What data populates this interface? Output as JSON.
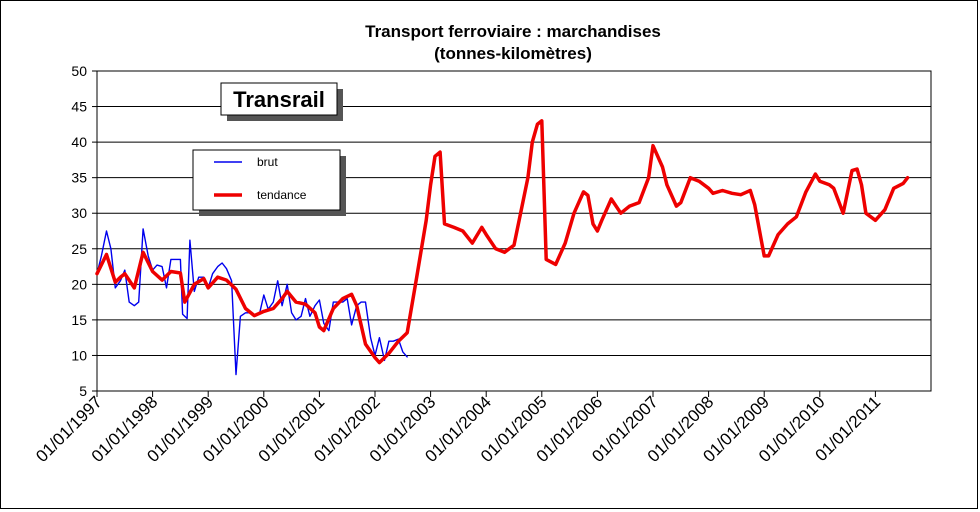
{
  "chart_data": {
    "type": "line",
    "title": "Transport ferroviaire : marchandises",
    "subtitle": "(tonnes-kilomètres)",
    "badge": "Transrail",
    "xlabel": "",
    "ylabel": "",
    "ylim": [
      5,
      50
    ],
    "yticks": [
      5,
      10,
      15,
      20,
      25,
      30,
      35,
      40,
      45,
      50
    ],
    "x_tick_labels": [
      "01/01/1997",
      "01/01/1998",
      "01/01/1999",
      "01/01/2000",
      "01/01/2001",
      "01/01/2002",
      "01/01/2003",
      "01/01/2004",
      "01/01/2005",
      "01/01/2006",
      "01/01/2007",
      "01/01/2008",
      "01/01/2009",
      "01/01/2010",
      "01/01/2011"
    ],
    "x_tick_years": [
      1997,
      1998,
      1999,
      2000,
      2001,
      2002,
      2003,
      2004,
      2005,
      2006,
      2007,
      2008,
      2009,
      2010,
      2011
    ],
    "xlim": [
      1997,
      2012
    ],
    "legend_position": "upper-left",
    "colors": {
      "brut": "#0000ee",
      "tendance": "#ee0000"
    },
    "series": [
      {
        "name": "brut",
        "points": [
          [
            1997.0,
            21.5
          ],
          [
            1997.08,
            24.0
          ],
          [
            1997.17,
            27.5
          ],
          [
            1997.25,
            25.0
          ],
          [
            1997.33,
            19.5
          ],
          [
            1997.42,
            20.5
          ],
          [
            1997.5,
            22.0
          ],
          [
            1997.58,
            17.5
          ],
          [
            1997.67,
            17.0
          ],
          [
            1997.75,
            17.5
          ],
          [
            1997.83,
            27.8
          ],
          [
            1997.92,
            24.0
          ],
          [
            1998.0,
            22.0
          ],
          [
            1998.08,
            22.7
          ],
          [
            1998.17,
            22.5
          ],
          [
            1998.25,
            19.5
          ],
          [
            1998.33,
            23.5
          ],
          [
            1998.42,
            23.5
          ],
          [
            1998.5,
            23.5
          ],
          [
            1998.54,
            15.8
          ],
          [
            1998.62,
            15.2
          ],
          [
            1998.67,
            26.2
          ],
          [
            1998.75,
            19.0
          ],
          [
            1998.83,
            21.0
          ],
          [
            1998.92,
            21.0
          ],
          [
            1999.0,
            19.5
          ],
          [
            1999.08,
            21.5
          ],
          [
            1999.17,
            22.5
          ],
          [
            1999.25,
            23.0
          ],
          [
            1999.33,
            22.2
          ],
          [
            1999.42,
            20.5
          ],
          [
            1999.5,
            7.3
          ],
          [
            1999.58,
            15.5
          ],
          [
            1999.67,
            16.0
          ],
          [
            1999.75,
            16.0
          ],
          [
            1999.83,
            15.5
          ],
          [
            1999.92,
            15.8
          ],
          [
            2000.0,
            18.5
          ],
          [
            2000.08,
            16.5
          ],
          [
            2000.17,
            17.5
          ],
          [
            2000.25,
            20.5
          ],
          [
            2000.33,
            17.0
          ],
          [
            2000.42,
            20.0
          ],
          [
            2000.5,
            16.0
          ],
          [
            2000.58,
            15.0
          ],
          [
            2000.67,
            15.5
          ],
          [
            2000.75,
            18.0
          ],
          [
            2000.83,
            15.5
          ],
          [
            2000.92,
            17.0
          ],
          [
            2001.0,
            17.8
          ],
          [
            2001.08,
            14.5
          ],
          [
            2001.17,
            13.5
          ],
          [
            2001.25,
            17.5
          ],
          [
            2001.33,
            17.5
          ],
          [
            2001.42,
            17.5
          ],
          [
            2001.5,
            18.0
          ],
          [
            2001.58,
            14.3
          ],
          [
            2001.67,
            17.0
          ],
          [
            2001.75,
            17.5
          ],
          [
            2001.83,
            17.5
          ],
          [
            2001.92,
            12.5
          ],
          [
            2002.0,
            10.0
          ],
          [
            2002.08,
            12.5
          ],
          [
            2002.17,
            9.3
          ],
          [
            2002.25,
            12.0
          ],
          [
            2002.33,
            12.0
          ],
          [
            2002.42,
            12.3
          ],
          [
            2002.5,
            10.5
          ],
          [
            2002.58,
            9.8
          ]
        ]
      },
      {
        "name": "tendance",
        "points": [
          [
            1997.0,
            21.5
          ],
          [
            1997.17,
            24.2
          ],
          [
            1997.33,
            20.3
          ],
          [
            1997.42,
            21.0
          ],
          [
            1997.5,
            21.5
          ],
          [
            1997.67,
            19.5
          ],
          [
            1997.83,
            24.5
          ],
          [
            1998.0,
            21.8
          ],
          [
            1998.17,
            20.6
          ],
          [
            1998.33,
            21.8
          ],
          [
            1998.5,
            21.6
          ],
          [
            1998.58,
            17.5
          ],
          [
            1998.75,
            20.0
          ],
          [
            1998.92,
            20.8
          ],
          [
            1999.0,
            19.5
          ],
          [
            1999.17,
            21.0
          ],
          [
            1999.33,
            20.6
          ],
          [
            1999.5,
            19.3
          ],
          [
            1999.67,
            16.6
          ],
          [
            1999.83,
            15.6
          ],
          [
            2000.0,
            16.2
          ],
          [
            2000.17,
            16.6
          ],
          [
            2000.33,
            18.0
          ],
          [
            2000.42,
            19.0
          ],
          [
            2000.58,
            17.5
          ],
          [
            2000.75,
            17.2
          ],
          [
            2000.92,
            16.0
          ],
          [
            2001.0,
            14.0
          ],
          [
            2001.08,
            13.5
          ],
          [
            2001.25,
            16.6
          ],
          [
            2001.42,
            18.0
          ],
          [
            2001.58,
            18.6
          ],
          [
            2001.67,
            17.0
          ],
          [
            2001.83,
            11.6
          ],
          [
            2002.0,
            9.7
          ],
          [
            2002.08,
            9.0
          ],
          [
            2002.25,
            10.3
          ],
          [
            2002.42,
            12.0
          ],
          [
            2002.58,
            13.2
          ],
          [
            2002.75,
            21.0
          ],
          [
            2002.92,
            29.0
          ],
          [
            2003.0,
            34.0
          ],
          [
            2003.08,
            38.0
          ],
          [
            2003.17,
            38.6
          ],
          [
            2003.25,
            28.5
          ],
          [
            2003.42,
            28.0
          ],
          [
            2003.58,
            27.5
          ],
          [
            2003.75,
            25.8
          ],
          [
            2003.92,
            28.0
          ],
          [
            2004.0,
            27.0
          ],
          [
            2004.17,
            25.0
          ],
          [
            2004.33,
            24.5
          ],
          [
            2004.5,
            25.5
          ],
          [
            2004.58,
            28.5
          ],
          [
            2004.75,
            35.0
          ],
          [
            2004.83,
            40.0
          ],
          [
            2004.92,
            42.5
          ],
          [
            2005.0,
            43.0
          ],
          [
            2005.08,
            23.5
          ],
          [
            2005.25,
            22.8
          ],
          [
            2005.42,
            25.8
          ],
          [
            2005.58,
            30.0
          ],
          [
            2005.75,
            33.0
          ],
          [
            2005.83,
            32.5
          ],
          [
            2005.92,
            28.5
          ],
          [
            2006.0,
            27.5
          ],
          [
            2006.08,
            29.0
          ],
          [
            2006.25,
            32.0
          ],
          [
            2006.42,
            30.0
          ],
          [
            2006.58,
            31.0
          ],
          [
            2006.75,
            31.5
          ],
          [
            2006.92,
            35.0
          ],
          [
            2007.0,
            39.5
          ],
          [
            2007.17,
            36.5
          ],
          [
            2007.25,
            34.0
          ],
          [
            2007.42,
            31.0
          ],
          [
            2007.5,
            31.5
          ],
          [
            2007.67,
            35.0
          ],
          [
            2007.83,
            34.5
          ],
          [
            2008.0,
            33.5
          ],
          [
            2008.08,
            32.8
          ],
          [
            2008.25,
            33.2
          ],
          [
            2008.42,
            32.8
          ],
          [
            2008.58,
            32.6
          ],
          [
            2008.75,
            33.2
          ],
          [
            2008.83,
            31.2
          ],
          [
            2009.0,
            24.0
          ],
          [
            2009.08,
            24.0
          ],
          [
            2009.25,
            27.0
          ],
          [
            2009.42,
            28.5
          ],
          [
            2009.58,
            29.5
          ],
          [
            2009.75,
            33.0
          ],
          [
            2009.92,
            35.5
          ],
          [
            2010.0,
            34.5
          ],
          [
            2010.17,
            34.0
          ],
          [
            2010.25,
            33.5
          ],
          [
            2010.42,
            30.0
          ],
          [
            2010.58,
            36.0
          ],
          [
            2010.67,
            36.2
          ],
          [
            2010.75,
            34.0
          ],
          [
            2010.83,
            30.0
          ],
          [
            2011.0,
            29.0
          ],
          [
            2011.17,
            30.5
          ],
          [
            2011.33,
            33.5
          ],
          [
            2011.5,
            34.2
          ],
          [
            2011.58,
            35.0
          ]
        ]
      }
    ]
  }
}
